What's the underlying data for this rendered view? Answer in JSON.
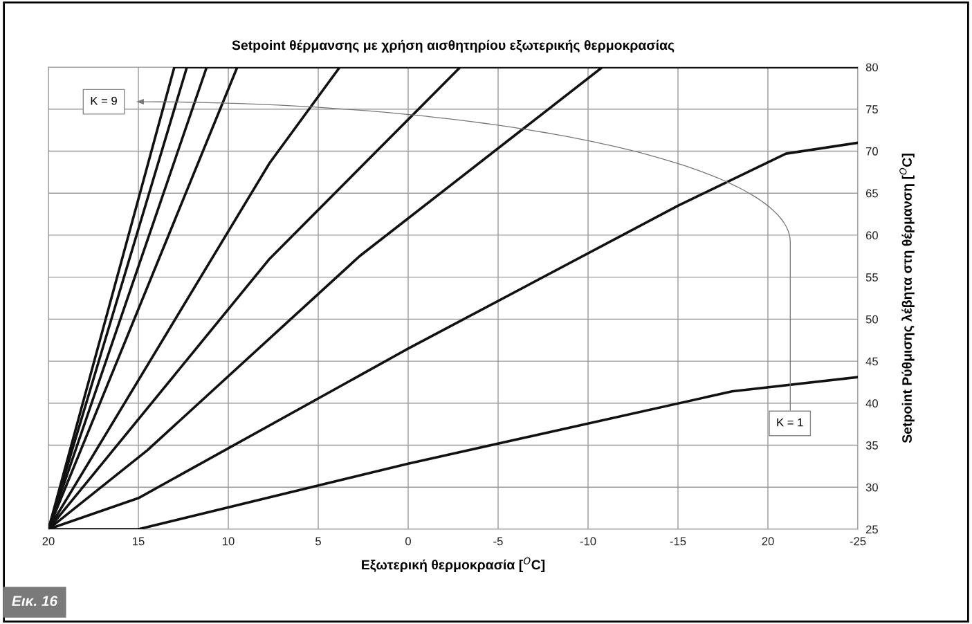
{
  "chart_data": {
    "type": "line",
    "title": "Setpoint θέρμανσης με χρήση αισθητηρίου εξωτερικής θερμοκρασίας",
    "xlabel": "Εξωτερική θερμοκρασία [$^{O}$C]",
    "ylabel": "Setpoint Ρύθμισης λέβητα στη θέρμανση [$^{O}$C]",
    "xlim": [
      20,
      -25
    ],
    "xticks": [
      20,
      15,
      10,
      5,
      0,
      -5,
      -10,
      -15,
      {
        "value": -20,
        "label": "20"
      },
      -25
    ],
    "ylim": [
      25,
      80
    ],
    "yticks": [
      25,
      30,
      35,
      40,
      45,
      50,
      55,
      60,
      65,
      70,
      75,
      80
    ],
    "grid": true,
    "legend": false,
    "marker": "none",
    "line_style": "solid",
    "series": [
      {
        "color": "#111111",
        "x": [
          20,
          15,
          0,
          -18,
          -25
        ],
        "values": [
          25,
          25,
          32.8,
          41.4,
          43.1
        ]
      },
      {
        "color": "#111111",
        "x": [
          20,
          15,
          0,
          -15,
          -21,
          -25
        ],
        "values": [
          25,
          28.7,
          46.5,
          63.5,
          69.7,
          71
        ]
      },
      {
        "color": "#111111",
        "x": [
          20,
          14.5,
          2.7,
          -10.8,
          -25
        ],
        "values": [
          25,
          34.4,
          57.5,
          80,
          80
        ]
      },
      {
        "color": "#111111",
        "x": [
          20,
          7.7,
          -2.9,
          -25
        ],
        "values": [
          25,
          57.2,
          80,
          80
        ]
      },
      {
        "color": "#111111",
        "x": [
          20,
          7.7,
          3.8,
          -25
        ],
        "values": [
          25,
          68.6,
          80,
          80
        ]
      },
      {
        "color": "#111111",
        "x": [
          20,
          9.5,
          -25
        ],
        "values": [
          25,
          80,
          80
        ]
      },
      {
        "color": "#111111",
        "x": [
          20,
          11.2,
          -25
        ],
        "values": [
          25,
          80,
          80
        ]
      },
      {
        "color": "#111111",
        "x": [
          20,
          12.3,
          -25
        ],
        "values": [
          25,
          80,
          80
        ]
      },
      {
        "color": "#111111",
        "x": [
          20,
          13,
          -25
        ],
        "values": [
          25,
          80,
          80
        ]
      }
    ],
    "annotations": [
      "K = 9",
      "K = 1",
      "Εικ. 16"
    ]
  }
}
